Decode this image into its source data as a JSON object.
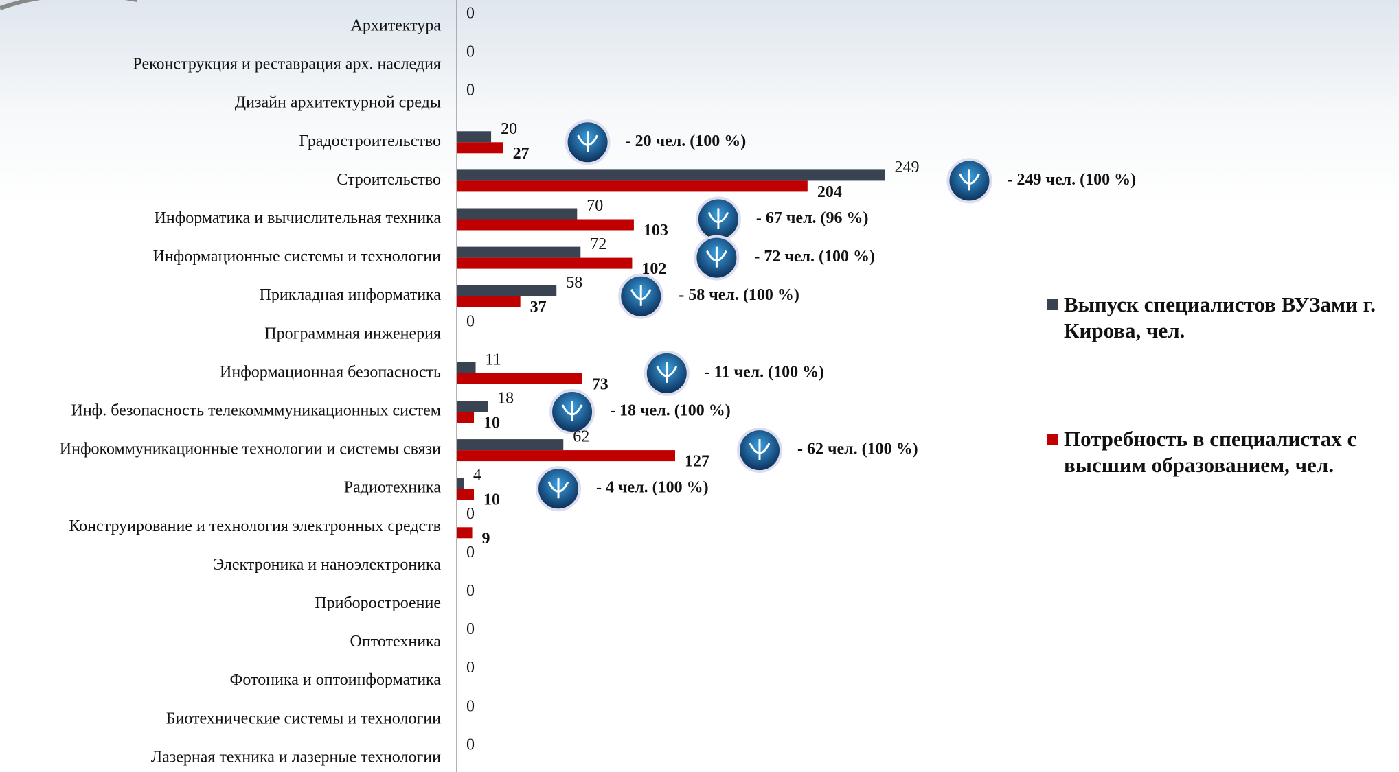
{
  "chart_data": {
    "type": "hbar",
    "categories": [
      "Архитектура",
      "Реконструкция и реставрация арх. наследия",
      "Дизайн архитектурной среды",
      "Градостроительство",
      "Строительство",
      "Информатика и вычислительная техника",
      "Информационные   системы и технологии",
      "Прикладная информатика",
      "Программная инженерия",
      "Информационная  безопасность",
      "Инф. безопасность телекомммуникационных систем",
      "Инфокоммуникационные технологии  и системы связи",
      "Радиотехника",
      "Конструирование и технология электронных средств",
      "Электроника и наноэлектроника",
      "Приборостроение",
      "Оптотехника",
      "Фотоника и оптоинформатика",
      "Биотехнические системы и технологии",
      "Лазерная техника и лазерные технологии"
    ],
    "series": [
      {
        "name": "Выпуск специалистов ВУЗами г. Кирова, чел.",
        "color": "#3a4352",
        "values": [
          0,
          0,
          0,
          20,
          249,
          70,
          72,
          58,
          0,
          11,
          18,
          62,
          4,
          0,
          0,
          0,
          0,
          0,
          0,
          0
        ]
      },
      {
        "name": "Потребность в специалистах с высшим образованием, чел.",
        "color": "#c00000",
        "values": [
          null,
          null,
          null,
          27,
          204,
          103,
          102,
          37,
          null,
          73,
          10,
          127,
          10,
          9,
          null,
          null,
          null,
          null,
          null,
          null
        ]
      }
    ],
    "annotations": [
      null,
      null,
      null,
      "- 20  чел. (100 %)",
      "- 249  чел. (100 %)",
      "- 67  чел. (96 %)",
      "- 72  чел. (100 %)",
      "- 58  чел. (100 %)",
      null,
      "- 11  чел. (100 %)",
      "- 18  чел. (100 %)",
      "- 62  чел. (100 %)",
      "- 4  чел. (100 %)",
      null,
      null,
      null,
      null,
      null,
      null,
      null
    ],
    "xlim": [
      0,
      250
    ],
    "legend": "right"
  }
}
